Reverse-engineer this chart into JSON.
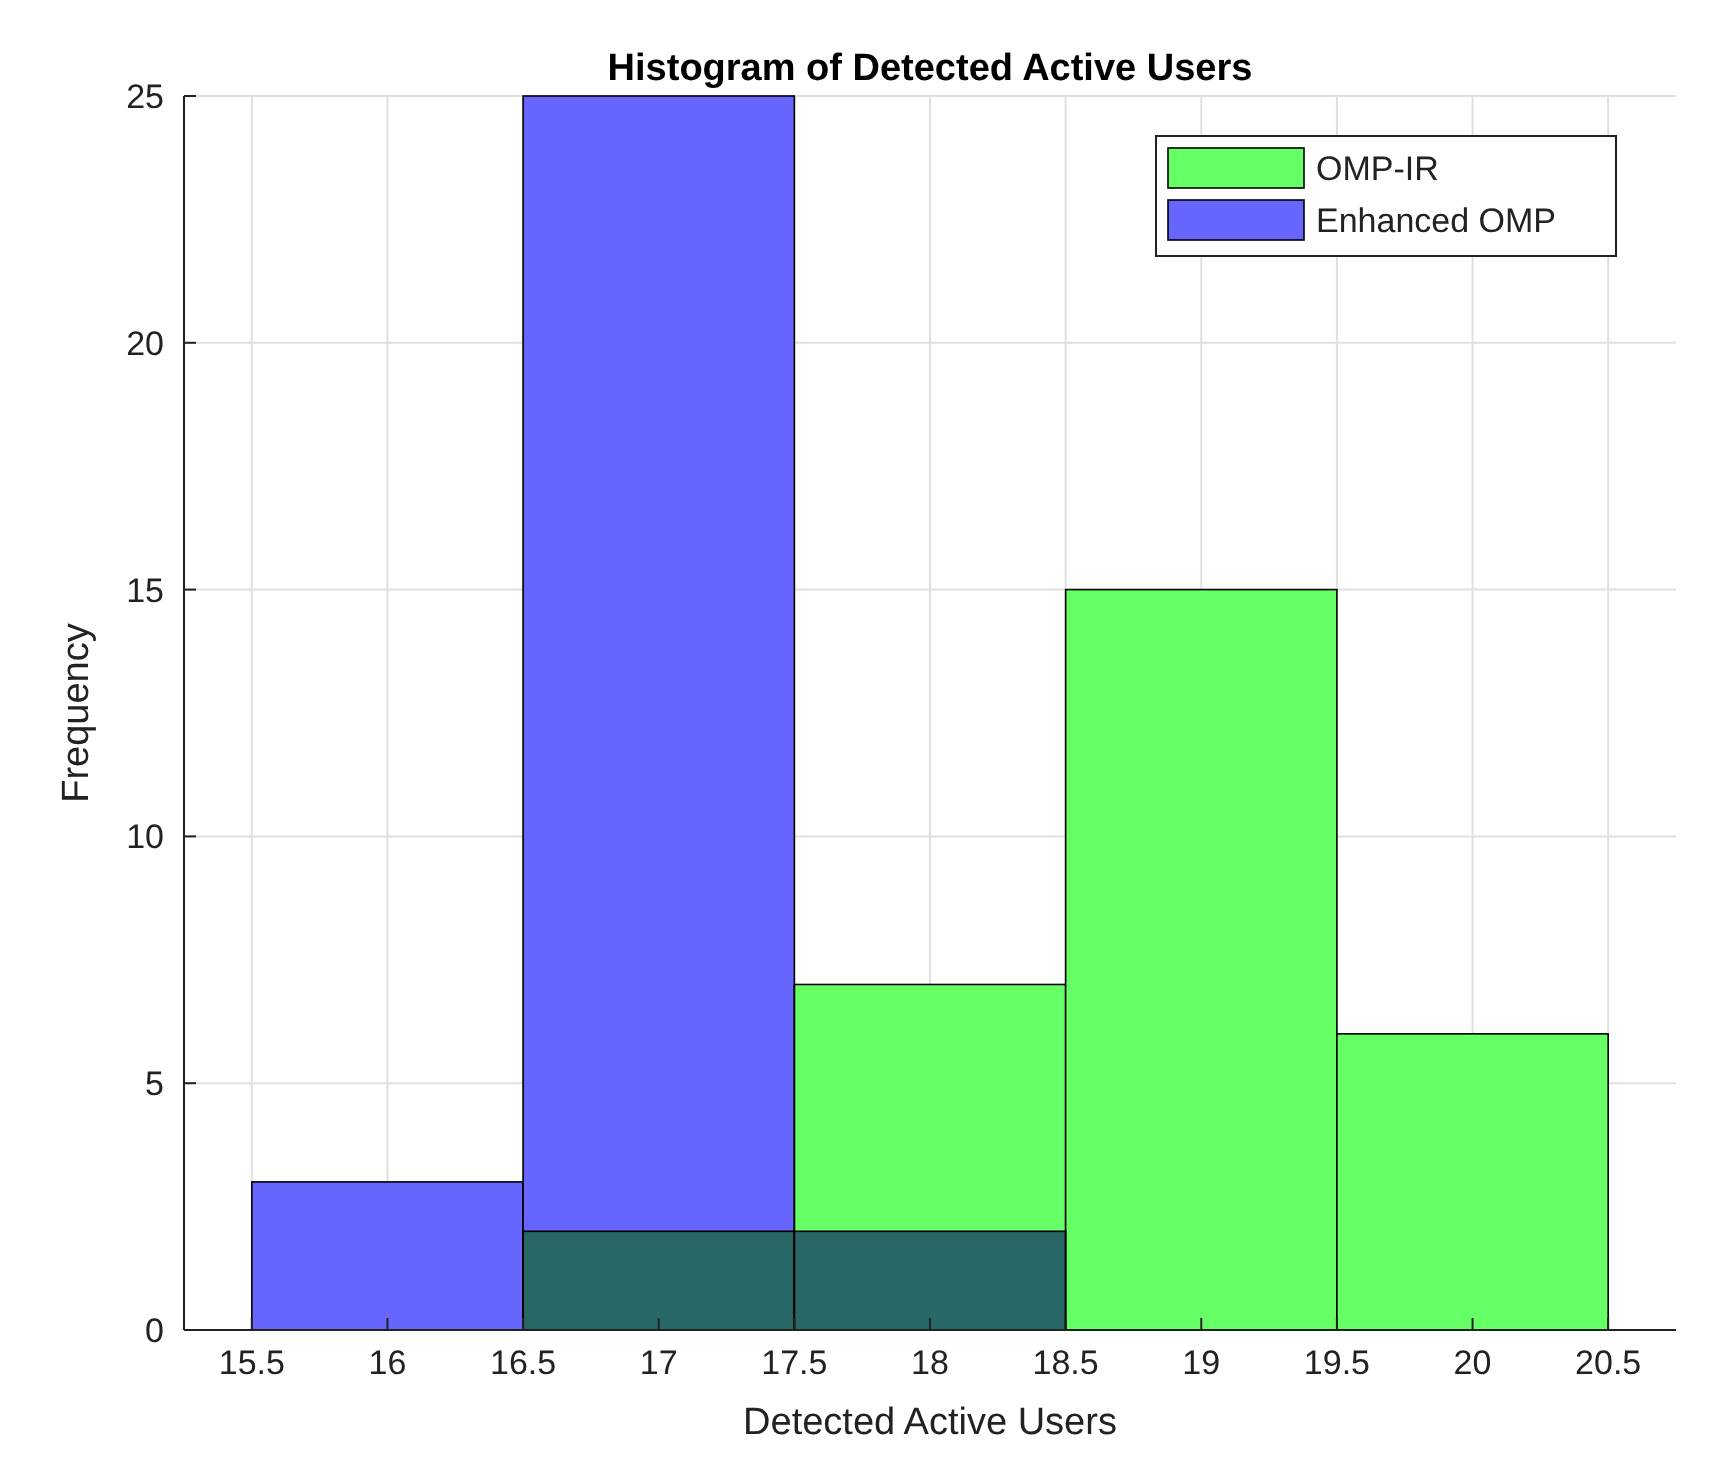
{
  "chart_data": {
    "type": "histogram",
    "title": "Histogram of Detected Active Users",
    "xlabel": "Detected Active Users",
    "ylabel": "Frequency",
    "bins": [
      15.5,
      16.5,
      17.5,
      18.5,
      19.5,
      20.5
    ],
    "series": [
      {
        "name": "OMP-IR",
        "color": "#66ff66",
        "values": [
          0,
          2,
          7,
          15,
          6
        ]
      },
      {
        "name": "Enhanced OMP",
        "color": "#6666ff",
        "values": [
          3,
          25,
          2,
          0,
          0
        ]
      }
    ],
    "xlim": [
      15.25,
      20.75
    ],
    "xticks": [
      15.5,
      16,
      16.5,
      17,
      17.5,
      18,
      18.5,
      19,
      19.5,
      20,
      20.5
    ],
    "ylim": [
      0,
      25
    ],
    "yticks": [
      0,
      5,
      10,
      15,
      20,
      25
    ],
    "grid": true,
    "legend": "top right"
  }
}
